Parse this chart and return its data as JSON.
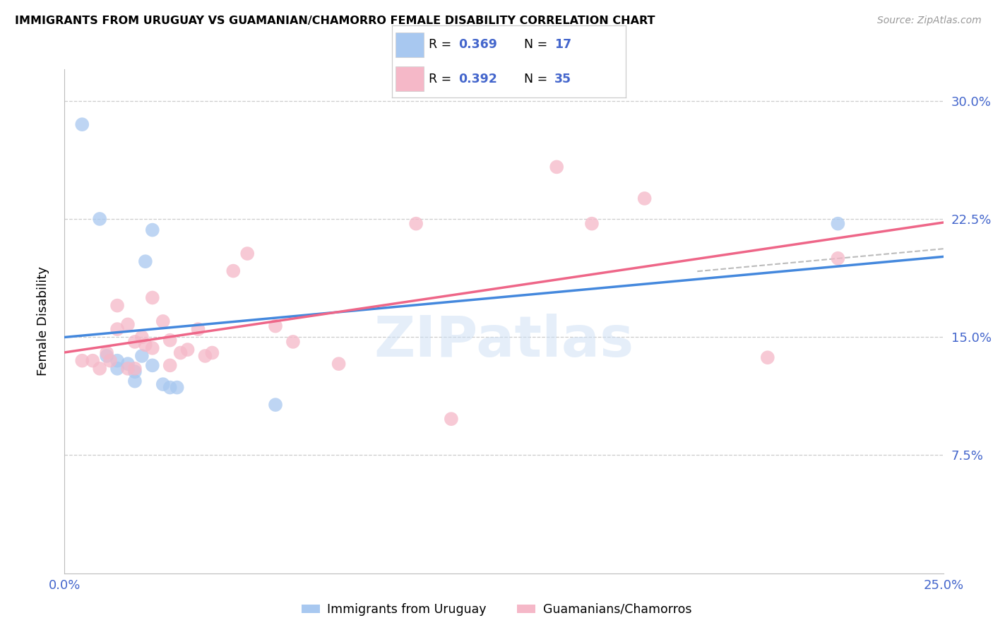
{
  "title": "IMMIGRANTS FROM URUGUAY VS GUAMANIAN/CHAMORRO FEMALE DISABILITY CORRELATION CHART",
  "source": "Source: ZipAtlas.com",
  "ylabel": "Female Disability",
  "xmin": 0.0,
  "xmax": 0.25,
  "ymin": 0.0,
  "ymax": 0.32,
  "ytick_vals": [
    0.075,
    0.15,
    0.225,
    0.3
  ],
  "ytick_labels": [
    "7.5%",
    "15.0%",
    "22.5%",
    "30.0%"
  ],
  "xtick_vals": [
    0.0,
    0.05,
    0.1,
    0.15,
    0.2,
    0.25
  ],
  "xtick_labels": [
    "0.0%",
    "",
    "",
    "",
    "",
    "25.0%"
  ],
  "blue_color": "#a8c8f0",
  "pink_color": "#f5b8c8",
  "line_blue_color": "#4488dd",
  "line_pink_color": "#ee6688",
  "axis_label_color": "#4466cc",
  "grid_color": "#cccccc",
  "legend_text_color": "#000000",
  "legend_value_color": "#4466cc",
  "blue_x": [
    0.005,
    0.01,
    0.012,
    0.015,
    0.015,
    0.018,
    0.02,
    0.02,
    0.022,
    0.023,
    0.025,
    0.025,
    0.028,
    0.03,
    0.032,
    0.06,
    0.22
  ],
  "blue_y": [
    0.285,
    0.225,
    0.138,
    0.135,
    0.13,
    0.133,
    0.128,
    0.122,
    0.138,
    0.198,
    0.218,
    0.132,
    0.12,
    0.118,
    0.118,
    0.107,
    0.222
  ],
  "pink_x": [
    0.005,
    0.008,
    0.01,
    0.012,
    0.013,
    0.015,
    0.015,
    0.018,
    0.018,
    0.02,
    0.02,
    0.022,
    0.023,
    0.025,
    0.025,
    0.028,
    0.03,
    0.03,
    0.033,
    0.035,
    0.038,
    0.04,
    0.042,
    0.048,
    0.052,
    0.06,
    0.065,
    0.078,
    0.1,
    0.11,
    0.14,
    0.15,
    0.165,
    0.2,
    0.22
  ],
  "pink_y": [
    0.135,
    0.135,
    0.13,
    0.14,
    0.135,
    0.17,
    0.155,
    0.158,
    0.13,
    0.147,
    0.13,
    0.15,
    0.145,
    0.175,
    0.143,
    0.16,
    0.148,
    0.132,
    0.14,
    0.142,
    0.155,
    0.138,
    0.14,
    0.192,
    0.203,
    0.157,
    0.147,
    0.133,
    0.222,
    0.098,
    0.258,
    0.222,
    0.238,
    0.137,
    0.2
  ],
  "watermark_text": "ZIPatlas",
  "background_color": "#ffffff"
}
